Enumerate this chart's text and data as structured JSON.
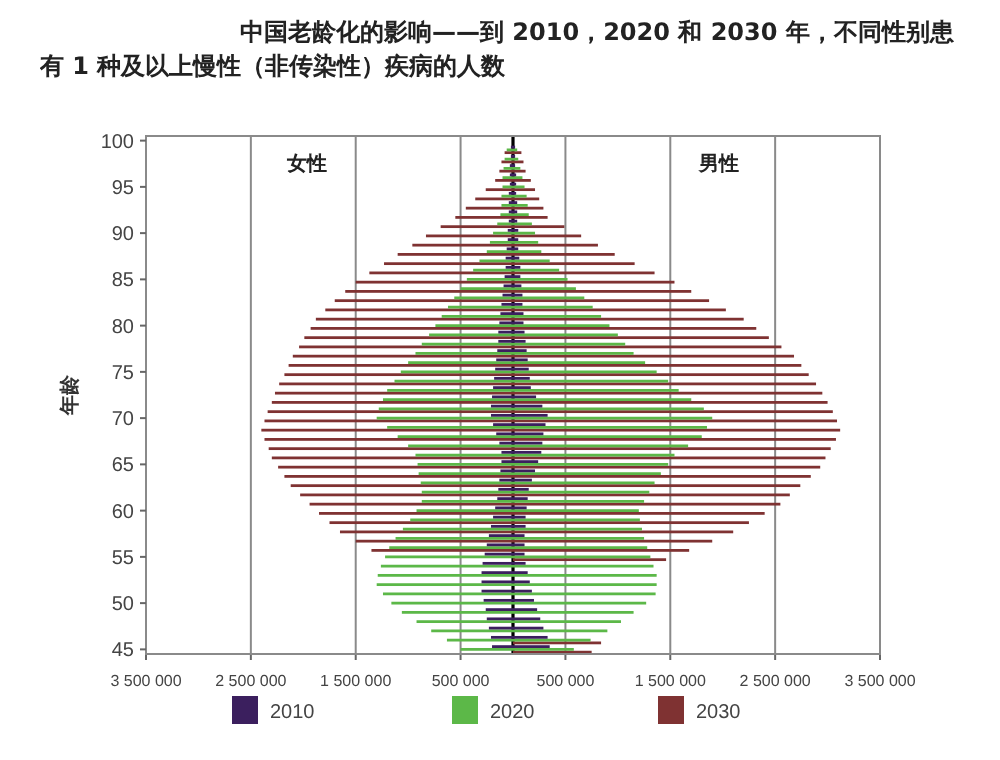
{
  "chart_data": {
    "type": "bar",
    "orientation": "horizontal",
    "title": "中国老龄化的影响——到 2010，2020 和 2030 年，不同性别患有 1 种及以上慢性（非传染性）疾病的人数",
    "ylabel": "年龄",
    "annotations": [
      "女性",
      "男性"
    ],
    "categories": [
      "100",
      null,
      null,
      null,
      null,
      "95",
      null,
      null,
      null,
      null,
      "90",
      null,
      null,
      null,
      null,
      "85",
      null,
      null,
      null,
      null,
      "80",
      null,
      null,
      null,
      null,
      "75",
      null,
      null,
      null,
      null,
      "70",
      null,
      null,
      null,
      null,
      "65",
      null,
      null,
      null,
      null,
      "60",
      null,
      null,
      null,
      null,
      "55",
      null,
      null,
      null,
      null,
      "50",
      null,
      null,
      null,
      null,
      "45"
    ],
    "xlim": [
      -3500000,
      3500000
    ],
    "xticks": [
      {
        "value": -3500000,
        "label": "3 500 000"
      },
      {
        "value": -2500000,
        "label": "2 500 000"
      },
      {
        "value": -1500000,
        "label": "1 500 000"
      },
      {
        "value": -500000,
        "label": "500 000"
      },
      {
        "value": 500000,
        "label": "500 000"
      },
      {
        "value": 1500000,
        "label": "1 500 000"
      },
      {
        "value": 2500000,
        "label": "2 500 000"
      },
      {
        "value": 3500000,
        "label": "3 500 000"
      }
    ],
    "grid": "x",
    "legend": "bottom",
    "ref_lines": [
      {
        "axis": "x",
        "value": 0,
        "color": "#000000"
      }
    ],
    "series": [
      {
        "name": "2010",
        "color": "#3b1f5e",
        "values": [
          null,
          -20000.0,
          -20000.0,
          -30000.0,
          -30000.0,
          -30000.0,
          -40000.0,
          -40000.0,
          -40000.0,
          -40000.0,
          -50000.0,
          -50000.0,
          -60000.0,
          -70000.0,
          -70000.0,
          -80000.0,
          -90000.0,
          -100000.0,
          -110000.0,
          -120000.0,
          -130000.0,
          -140000.0,
          -140000.0,
          -150000.0,
          -160000.0,
          -170000.0,
          -180000.0,
          -190000.0,
          -200000.0,
          -210000.0,
          -210000.0,
          -190000.0,
          -160000.0,
          -130000.0,
          -110000.0,
          -110000.0,
          -120000.0,
          -130000.0,
          -140000.0,
          -150000.0,
          -170000.0,
          -190000.0,
          -210000.0,
          -230000.0,
          -250000.0,
          -270000.0,
          -290000.0,
          -300000.0,
          -300000.0,
          -300000.0,
          -280000.0,
          -260000.0,
          -250000.0,
          -230000.0,
          -210000.0,
          -200000.0
        ]
      },
      {
        "name": "2020",
        "color": "#5cb848",
        "values": [
          null,
          -60000.0,
          -80000.0,
          -90000.0,
          -100000.0,
          -100000.0,
          -110000.0,
          -110000.0,
          -120000.0,
          -150000.0,
          -190000.0,
          -220000.0,
          -250000.0,
          -320000.0,
          -380000.0,
          -440000.0,
          -500000.0,
          -560000.0,
          -620000.0,
          -680000.0,
          -740000.0,
          -800000.0,
          -870000.0,
          -930000.0,
          -1000000.0,
          -1070000.0,
          -1130000.0,
          -1200000.0,
          -1240000.0,
          -1280000.0,
          -1300000.0,
          -1200000.0,
          -1100000.0,
          -1000000.0,
          -930000.0,
          -910000.0,
          -900000.0,
          -880000.0,
          -870000.0,
          -870000.0,
          -920000.0,
          -980000.0,
          -1050000.0,
          -1120000.0,
          -1180000.0,
          -1220000.0,
          -1260000.0,
          -1290000.0,
          -1300000.0,
          -1240000.0,
          -1160000.0,
          -1060000.0,
          -920000.0,
          -780000.0,
          -630000.0,
          -500000.0
        ]
      },
      {
        "name": "2030",
        "color": "#7f3232",
        "values": [
          null,
          -80000.0,
          -110000.0,
          -130000.0,
          -170000.0,
          -260000.0,
          -360000.0,
          -450000.0,
          -550000.0,
          -690000.0,
          -830000.0,
          -960000.0,
          -1100000.0,
          -1230000.0,
          -1370000.0,
          -1500000.0,
          -1600000.0,
          -1700000.0,
          -1790000.0,
          -1880000.0,
          -1930000.0,
          -1990000.0,
          -2040000.0,
          -2100000.0,
          -2140000.0,
          -2180000.0,
          -2230000.0,
          -2270000.0,
          -2300000.0,
          -2340000.0,
          -2370000.0,
          -2400000.0,
          -2370000.0,
          -2330000.0,
          -2300000.0,
          -2240000.0,
          -2180000.0,
          -2120000.0,
          -2030000.0,
          -1940000.0,
          -1850000.0,
          -1750000.0,
          -1650000.0,
          -1500000.0,
          -1350000.0,
          null,
          null,
          null,
          null,
          null,
          null,
          null,
          null,
          null,
          null,
          null
        ]
      },
      {
        "color": "#3b1f5e",
        "values": [
          null,
          20000.0,
          20000.0,
          20000.0,
          30000.0,
          30000.0,
          30000.0,
          40000.0,
          40000.0,
          40000.0,
          50000.0,
          50000.0,
          50000.0,
          60000.0,
          70000.0,
          70000.0,
          80000.0,
          90000.0,
          90000.0,
          100000.0,
          100000.0,
          110000.0,
          120000.0,
          130000.0,
          140000.0,
          150000.0,
          160000.0,
          170000.0,
          220000.0,
          280000.0,
          330000.0,
          310000.0,
          290000.0,
          280000.0,
          270000.0,
          240000.0,
          210000.0,
          180000.0,
          150000.0,
          140000.0,
          130000.0,
          120000.0,
          120000.0,
          110000.0,
          110000.0,
          110000.0,
          120000.0,
          140000.0,
          160000.0,
          180000.0,
          200000.0,
          230000.0,
          260000.0,
          290000.0,
          330000.0,
          350000.0
        ]
      },
      {
        "color": "#5cb848",
        "values": [
          null,
          40000.0,
          50000.0,
          70000.0,
          90000.0,
          110000.0,
          130000.0,
          140000.0,
          150000.0,
          180000.0,
          210000.0,
          240000.0,
          270000.0,
          350000.0,
          440000.0,
          520000.0,
          600000.0,
          680000.0,
          760000.0,
          840000.0,
          920000.0,
          1000000.0,
          1070000.0,
          1150000.0,
          1260000.0,
          1370000.0,
          1480000.0,
          1580000.0,
          1700000.0,
          1820000.0,
          1900000.0,
          1850000.0,
          1800000.0,
          1670000.0,
          1540000.0,
          1480000.0,
          1410000.0,
          1350000.0,
          1300000.0,
          1250000.0,
          1200000.0,
          1210000.0,
          1230000.0,
          1250000.0,
          1280000.0,
          1310000.0,
          1340000.0,
          1370000.0,
          1370000.0,
          1360000.0,
          1270000.0,
          1150000.0,
          1030000.0,
          900000.0,
          740000.0,
          580000.0
        ]
      },
      {
        "color": "#7f3232",
        "values": [
          null,
          80000.0,
          100000.0,
          120000.0,
          170000.0,
          210000.0,
          250000.0,
          290000.0,
          330000.0,
          490000.0,
          650000.0,
          810000.0,
          970000.0,
          1160000.0,
          1350000.0,
          1540000.0,
          1700000.0,
          1870000.0,
          2030000.0,
          2200000.0,
          2320000.0,
          2440000.0,
          2560000.0,
          2680000.0,
          2750000.0,
          2820000.0,
          2890000.0,
          2950000.0,
          3000000.0,
          3050000.0,
          3090000.0,
          3120000.0,
          3080000.0,
          3030000.0,
          2980000.0,
          2930000.0,
          2840000.0,
          2740000.0,
          2640000.0,
          2550000.0,
          2400000.0,
          2250000.0,
          2100000.0,
          1900000.0,
          1680000.0,
          1460000.0,
          null,
          null,
          null,
          null,
          null,
          null,
          null,
          null,
          840000.0,
          750000.0
        ]
      }
    ]
  }
}
